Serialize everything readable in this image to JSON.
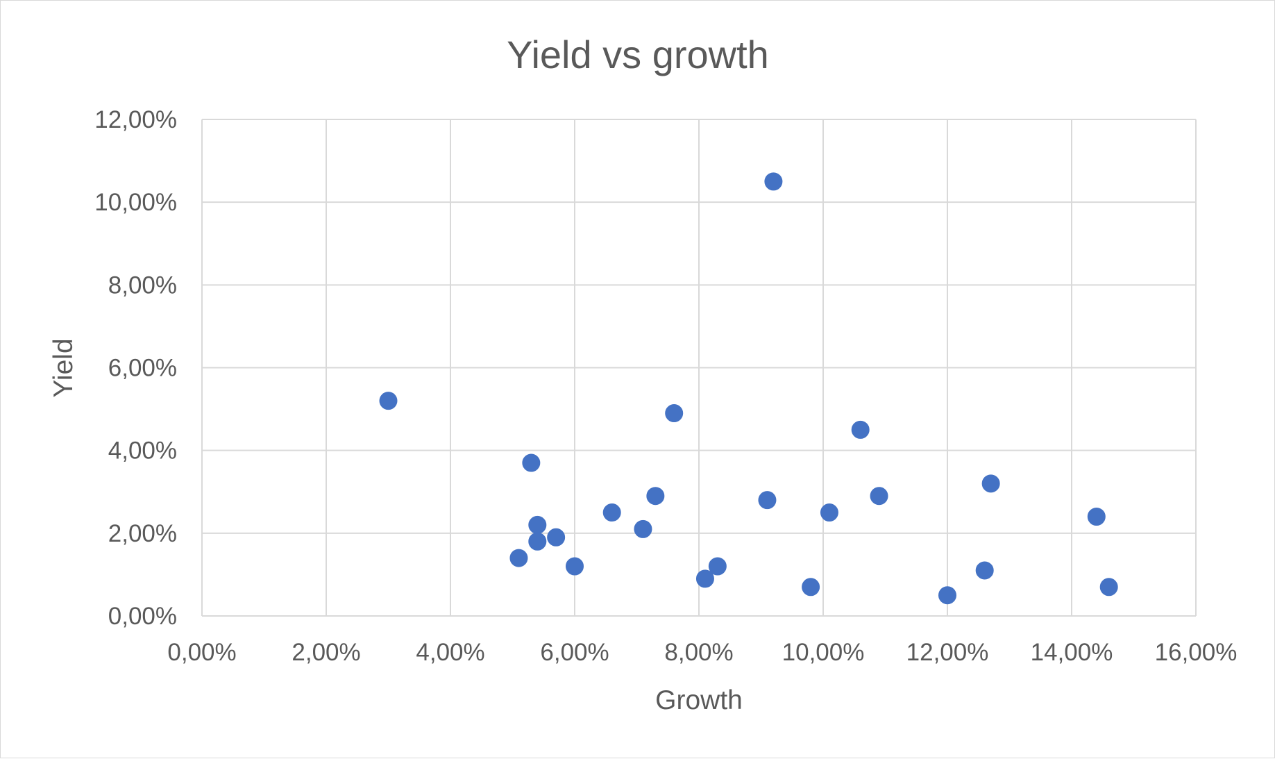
{
  "chart_data": {
    "type": "scatter",
    "title": "Yield vs growth",
    "xlabel": "Growth",
    "ylabel": "Yield",
    "xlim": [
      0,
      16
    ],
    "ylim": [
      0,
      12
    ],
    "x_ticks": [
      "0,00%",
      "2,00%",
      "4,00%",
      "6,00%",
      "8,00%",
      "10,00%",
      "12,00%",
      "14,00%",
      "16,00%"
    ],
    "y_ticks": [
      "0,00%",
      "2,00%",
      "4,00%",
      "6,00%",
      "8,00%",
      "10,00%",
      "12,00%"
    ],
    "grid": true,
    "legend": "none",
    "marker_color": "#4472c4",
    "points": [
      {
        "x": 3.0,
        "y": 5.2
      },
      {
        "x": 5.1,
        "y": 1.4
      },
      {
        "x": 5.3,
        "y": 3.7
      },
      {
        "x": 5.4,
        "y": 2.2
      },
      {
        "x": 5.4,
        "y": 1.8
      },
      {
        "x": 5.7,
        "y": 1.9
      },
      {
        "x": 6.0,
        "y": 1.2
      },
      {
        "x": 6.6,
        "y": 2.5
      },
      {
        "x": 7.1,
        "y": 2.1
      },
      {
        "x": 7.3,
        "y": 2.9
      },
      {
        "x": 7.6,
        "y": 4.9
      },
      {
        "x": 8.1,
        "y": 0.9
      },
      {
        "x": 8.3,
        "y": 1.2
      },
      {
        "x": 9.1,
        "y": 2.8
      },
      {
        "x": 9.2,
        "y": 10.5
      },
      {
        "x": 9.8,
        "y": 0.7
      },
      {
        "x": 10.1,
        "y": 2.5
      },
      {
        "x": 10.6,
        "y": 4.5
      },
      {
        "x": 10.9,
        "y": 2.9
      },
      {
        "x": 12.0,
        "y": 0.5
      },
      {
        "x": 12.6,
        "y": 1.1
      },
      {
        "x": 12.7,
        "y": 3.2
      },
      {
        "x": 14.4,
        "y": 2.4
      },
      {
        "x": 14.6,
        "y": 0.7
      }
    ]
  }
}
